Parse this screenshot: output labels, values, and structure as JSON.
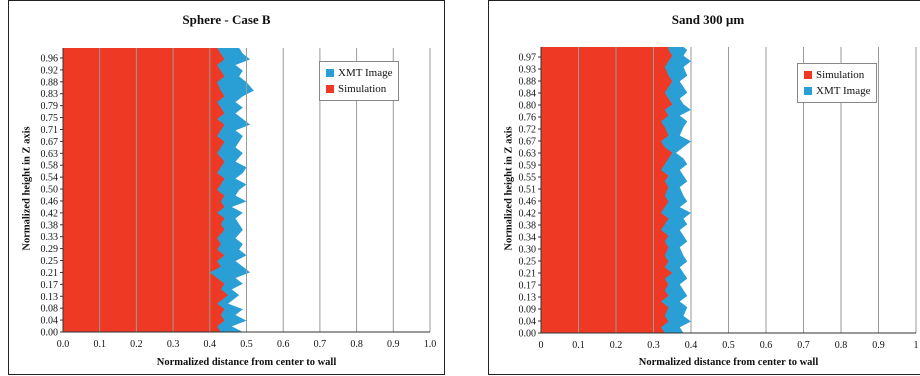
{
  "chart_data": [
    {
      "type": "area",
      "title": "Sphere - Case B",
      "xlabel": "Normalized distance from center to wall",
      "ylabel": "Normalized height in Z axis",
      "xlim": [
        0,
        1
      ],
      "x_ticks": [
        "0.0",
        "0.1",
        "0.2",
        "0.3",
        "0.4",
        "0.5",
        "0.6",
        "0.7",
        "0.8",
        "0.9",
        "1.0"
      ],
      "y_ticks": [
        "0.00",
        "0.04",
        "0.08",
        "0.13",
        "0.17",
        "0.21",
        "0.25",
        "0.29",
        "0.33",
        "0.38",
        "0.42",
        "0.46",
        "0.50",
        "0.54",
        "0.58",
        "0.63",
        "0.67",
        "0.71",
        "0.75",
        "0.79",
        "0.83",
        "0.88",
        "0.92",
        "0.96"
      ],
      "grid": "vertical",
      "legend_position": "top-right",
      "legend": [
        "XMT Image",
        "Simulation"
      ],
      "colors": {
        "XMT Image": "#2a9fd6",
        "Simulation": "#ee3a24"
      },
      "y": [
        0.0,
        0.02,
        0.04,
        0.06,
        0.08,
        0.1,
        0.13,
        0.15,
        0.17,
        0.19,
        0.21,
        0.23,
        0.25,
        0.27,
        0.29,
        0.31,
        0.33,
        0.36,
        0.38,
        0.4,
        0.42,
        0.44,
        0.46,
        0.48,
        0.5,
        0.52,
        0.54,
        0.56,
        0.58,
        0.6,
        0.63,
        0.65,
        0.67,
        0.69,
        0.71,
        0.73,
        0.75,
        0.77,
        0.79,
        0.81,
        0.83,
        0.85,
        0.88,
        0.9,
        0.92,
        0.94,
        0.96,
        0.98,
        1.0
      ],
      "series": [
        {
          "name": "Simulation",
          "values": [
            0.43,
            0.42,
            0.44,
            0.43,
            0.44,
            0.42,
            0.45,
            0.43,
            0.44,
            0.42,
            0.4,
            0.43,
            0.42,
            0.44,
            0.42,
            0.43,
            0.42,
            0.44,
            0.43,
            0.44,
            0.42,
            0.44,
            0.43,
            0.44,
            0.42,
            0.43,
            0.44,
            0.42,
            0.43,
            0.44,
            0.42,
            0.43,
            0.44,
            0.42,
            0.43,
            0.44,
            0.42,
            0.44,
            0.43,
            0.42,
            0.44,
            0.43,
            0.42,
            0.44,
            0.43,
            0.42,
            0.44,
            0.43,
            0.42
          ]
        },
        {
          "name": "XMT Image",
          "values": [
            0.49,
            0.46,
            0.5,
            0.47,
            0.49,
            0.45,
            0.48,
            0.46,
            0.49,
            0.47,
            0.51,
            0.49,
            0.47,
            0.5,
            0.48,
            0.49,
            0.47,
            0.49,
            0.48,
            0.47,
            0.49,
            0.46,
            0.5,
            0.47,
            0.48,
            0.5,
            0.47,
            0.49,
            0.5,
            0.47,
            0.49,
            0.47,
            0.48,
            0.49,
            0.47,
            0.51,
            0.49,
            0.47,
            0.49,
            0.47,
            0.49,
            0.52,
            0.5,
            0.48,
            0.49,
            0.47,
            0.51,
            0.49,
            0.48
          ]
        }
      ]
    },
    {
      "type": "area",
      "title": "Sand 300 µm",
      "xlabel": "Normalized distance from center to wall",
      "ylabel": "Normalized height in Z axis",
      "xlim": [
        0,
        1
      ],
      "x_ticks": [
        "0",
        "0.1",
        "0.2",
        "0.3",
        "0.4",
        "0.5",
        "0.6",
        "0.7",
        "0.8",
        "0.9",
        "1"
      ],
      "y_ticks": [
        "0.00",
        "0.04",
        "0.09",
        "0.13",
        "0.17",
        "0.21",
        "0.25",
        "0.30",
        "0.34",
        "0.38",
        "0.42",
        "0.46",
        "0.51",
        "0.55",
        "0.59",
        "0.63",
        "0.67",
        "0.72",
        "0.76",
        "0.80",
        "0.84",
        "0.88",
        "0.93",
        "0.97"
      ],
      "grid": "vertical",
      "legend_position": "top-right",
      "legend": [
        "Simulation",
        "XMT Image"
      ],
      "colors": {
        "XMT Image": "#2a9fd6",
        "Simulation": "#ee3a24"
      },
      "y": [
        0.0,
        0.02,
        0.04,
        0.06,
        0.09,
        0.11,
        0.13,
        0.15,
        0.17,
        0.19,
        0.21,
        0.23,
        0.25,
        0.27,
        0.3,
        0.32,
        0.34,
        0.36,
        0.38,
        0.4,
        0.42,
        0.44,
        0.46,
        0.48,
        0.51,
        0.53,
        0.55,
        0.57,
        0.59,
        0.61,
        0.63,
        0.65,
        0.67,
        0.69,
        0.72,
        0.74,
        0.76,
        0.78,
        0.8,
        0.82,
        0.84,
        0.86,
        0.88,
        0.9,
        0.93,
        0.95,
        0.97,
        0.99,
        1.0
      ],
      "series": [
        {
          "name": "Simulation",
          "values": [
            0.33,
            0.32,
            0.34,
            0.33,
            0.34,
            0.32,
            0.34,
            0.33,
            0.34,
            0.33,
            0.35,
            0.33,
            0.34,
            0.33,
            0.34,
            0.33,
            0.34,
            0.32,
            0.33,
            0.34,
            0.32,
            0.33,
            0.34,
            0.33,
            0.34,
            0.33,
            0.34,
            0.32,
            0.33,
            0.34,
            0.35,
            0.33,
            0.32,
            0.34,
            0.33,
            0.32,
            0.34,
            0.33,
            0.35,
            0.34,
            0.33,
            0.34,
            0.35,
            0.34,
            0.33,
            0.34,
            0.35,
            0.34,
            0.34
          ]
        },
        {
          "name": "XMT Image",
          "values": [
            0.38,
            0.37,
            0.4,
            0.38,
            0.39,
            0.37,
            0.39,
            0.38,
            0.37,
            0.39,
            0.38,
            0.37,
            0.39,
            0.38,
            0.37,
            0.39,
            0.38,
            0.37,
            0.39,
            0.38,
            0.4,
            0.37,
            0.39,
            0.38,
            0.37,
            0.39,
            0.38,
            0.37,
            0.39,
            0.38,
            0.36,
            0.38,
            0.4,
            0.37,
            0.38,
            0.39,
            0.37,
            0.4,
            0.38,
            0.37,
            0.39,
            0.38,
            0.37,
            0.39,
            0.38,
            0.4,
            0.38,
            0.39,
            0.38
          ]
        }
      ]
    }
  ]
}
